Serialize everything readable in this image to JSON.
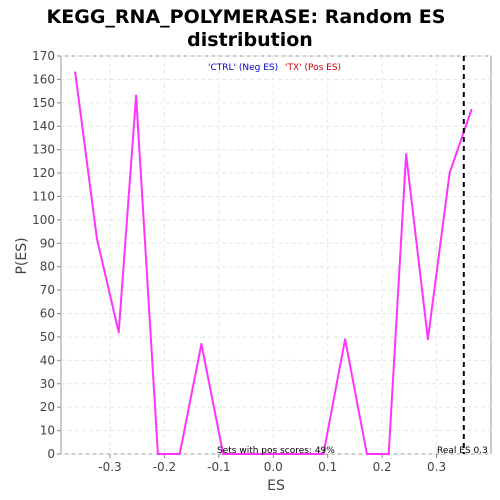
{
  "chart_data": {
    "type": "line",
    "title_lines": [
      "KEGG_RNA_POLYMERASE: Random ES",
      "distribution"
    ],
    "xlabel": "ES",
    "ylabel": "P(ES)",
    "xlim": [
      -0.39,
      0.4
    ],
    "ylim": [
      0,
      170
    ],
    "x_ticks": [
      -0.3,
      -0.2,
      -0.1,
      0.0,
      0.1,
      0.2,
      0.3
    ],
    "x_tick_labels": [
      "-0.3",
      "-0.2",
      "-0.1",
      "0.0",
      "0.1",
      "0.2",
      "0.3"
    ],
    "y_ticks": [
      0,
      10,
      20,
      30,
      40,
      50,
      60,
      70,
      80,
      90,
      100,
      110,
      120,
      130,
      140,
      150,
      160,
      170
    ],
    "y_tick_labels": [
      "0",
      "10",
      "20",
      "30",
      "40",
      "50",
      "60",
      "70",
      "80",
      "90",
      "100",
      "110",
      "120",
      "130",
      "140",
      "150",
      "160",
      "170"
    ],
    "grid": true,
    "series": [
      {
        "color": "#ff33ff",
        "x": [
          -0.364,
          -0.324,
          -0.284,
          -0.252,
          -0.212,
          -0.172,
          -0.132,
          -0.092,
          -0.052,
          -0.012,
          0.028,
          0.068,
          0.092,
          0.132,
          0.172,
          0.212,
          0.244,
          0.284,
          0.324,
          0.364
        ],
        "y": [
          163,
          92,
          52,
          153,
          0,
          0,
          47,
          0,
          0,
          0,
          0,
          0,
          0,
          49,
          0,
          0,
          128,
          49,
          120,
          147
        ]
      }
    ],
    "legend": {
      "placement": "top-center",
      "neg_label": "'CTRL' (Neg ES)",
      "neg_color": "#0000cc",
      "pos_label": "'TX' (Pos ES)",
      "pos_color": "#cc0000"
    },
    "real_es": {
      "x": 0.35,
      "label": "Real ES 0.3",
      "style": "dashed"
    },
    "annotation": "Sets with pos scores: 49%"
  }
}
